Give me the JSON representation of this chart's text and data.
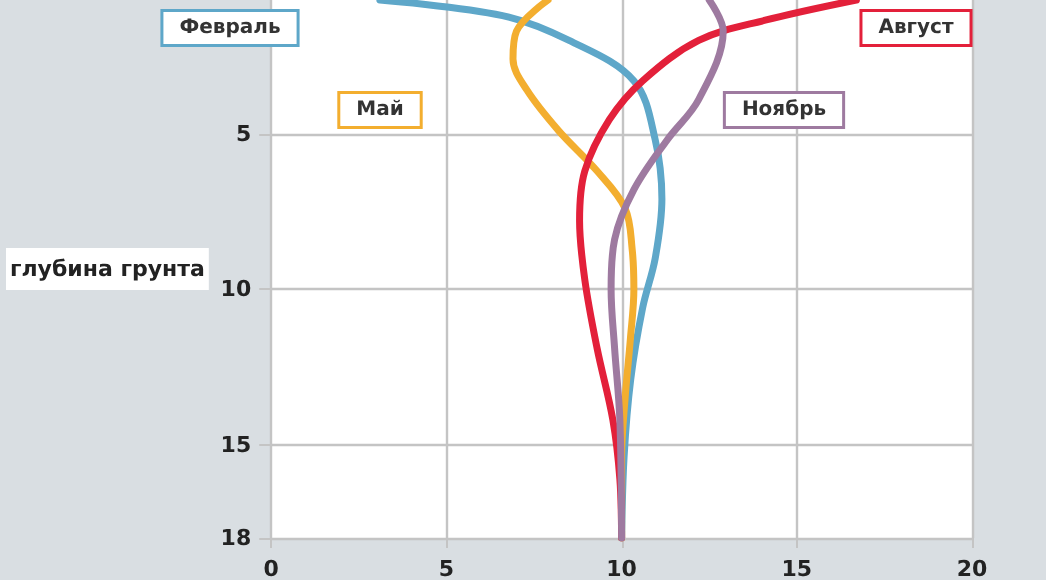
{
  "chart_data": {
    "type": "line",
    "ylabel": "глубина грунта",
    "xlim": [
      0,
      20
    ],
    "xticks": [
      0,
      5,
      10,
      15,
      20
    ],
    "ylim": [
      18,
      0.7
    ],
    "yticks": [
      5,
      10,
      15,
      18
    ],
    "grid": true,
    "legend": false,
    "marker": "none",
    "line_style": "solid",
    "series": [
      {
        "name": "Февраль",
        "color": "#5ea7c9",
        "x": [
          3.1,
          6.6,
          8.5,
          10.35,
          10.96,
          11.15,
          10.96,
          10.6,
          10.26,
          10.07,
          10
        ],
        "values": [
          0.7,
          1.2,
          2.0,
          3.3,
          5.2,
          7.1,
          9.0,
          10.6,
          12.9,
          15.4,
          18
        ]
      },
      {
        "name": "Май",
        "color": "#f3ae2f",
        "x": [
          7.9,
          7.0,
          6.9,
          7.3,
          8.2,
          9.3,
          10.1,
          10.3,
          10.35,
          10.25,
          10.1,
          10,
          10
        ],
        "values": [
          0.7,
          1.7,
          2.6,
          3.6,
          4.9,
          6.2,
          7.4,
          8.7,
          10,
          11.6,
          13.5,
          15.4,
          18
        ]
      },
      {
        "name": "Август",
        "color": "#e3203a",
        "x": [
          16.7,
          14.1,
          12.2,
          10.6,
          9.65,
          8.95,
          8.8,
          8.95,
          9.3,
          9.75,
          9.95,
          10
        ],
        "values": [
          0.7,
          1.35,
          2.0,
          3.3,
          4.55,
          6.2,
          7.8,
          9.7,
          11.9,
          14.2,
          16.1,
          18
        ]
      },
      {
        "name": "Ноябрь",
        "color": "#9e7aa0",
        "x": [
          12.5,
          12.9,
          12.2,
          11.3,
          10.35,
          9.8,
          9.7,
          9.8,
          9.95,
          10
        ],
        "values": [
          0.7,
          1.7,
          3.9,
          5.2,
          6.8,
          8.4,
          10,
          11.9,
          14.2,
          18
        ]
      }
    ]
  }
}
